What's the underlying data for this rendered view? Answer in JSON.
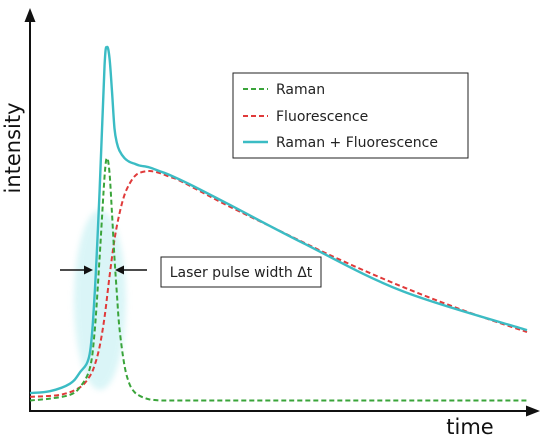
{
  "chart_data": {
    "type": "line",
    "title": "",
    "xlabel": "time",
    "ylabel": "intensity",
    "xlim": [
      0,
      100
    ],
    "ylim": [
      0,
      100
    ],
    "grid": false,
    "ticks": false,
    "legend": {
      "placement": "top-right",
      "boxed": true
    },
    "series": [
      {
        "name": "Raman",
        "color": "#3aa43a",
        "dash": "dashed",
        "x": [
          0,
          4,
          8,
          10,
          12,
          13,
          14,
          15,
          15.5,
          16,
          16.5,
          17,
          17.5,
          18,
          19,
          20,
          21,
          22,
          23,
          24,
          26,
          28,
          32,
          40,
          55,
          75,
          100
        ],
        "y": [
          1.5,
          2,
          3,
          5,
          10,
          20,
          40,
          62,
          67,
          63,
          52,
          40,
          30,
          21,
          11,
          6,
          3.8,
          2.8,
          2.2,
          1.8,
          1.5,
          1.5,
          1.5,
          1.5,
          1.5,
          1.5,
          1.5
        ]
      },
      {
        "name": "Fluorescence",
        "color": "#e03a3a",
        "dash": "dashed",
        "x": [
          0,
          6,
          10,
          12,
          13,
          14,
          15,
          16,
          17,
          18,
          19,
          20,
          21,
          22,
          24,
          26,
          28,
          30,
          35,
          40,
          50,
          60,
          70,
          80,
          90,
          100
        ],
        "y": [
          2.5,
          3,
          5,
          8,
          11,
          16,
          24,
          35,
          45,
          52,
          57,
          60,
          62,
          63,
          63.5,
          63,
          62,
          61,
          57.5,
          54,
          47.5,
          41,
          35,
          29.5,
          24.5,
          20
        ]
      },
      {
        "name": "Raman + Fluorescence",
        "color": "#3bbcc4",
        "dash": "solid",
        "x": [
          0,
          4,
          8,
          10,
          12,
          13,
          14,
          15,
          15.5,
          16,
          16.5,
          17,
          17.5,
          18,
          19,
          20,
          21,
          22,
          24,
          26,
          28,
          32,
          40,
          55,
          75,
          100
        ],
        "y": [
          3.5,
          4,
          6,
          9,
          14,
          30,
          58,
          92,
          97,
          94,
          85,
          75,
          71,
          69,
          67,
          66,
          65.5,
          65,
          64.5,
          63.5,
          62.5,
          60,
          54.5,
          44,
          31,
          20.5
        ]
      }
    ],
    "annotations": [
      {
        "text": "Laser pulse width Δt",
        "type": "double-arrow",
        "x_from": 12.5,
        "x_to": 17.5,
        "y": 37
      }
    ]
  }
}
